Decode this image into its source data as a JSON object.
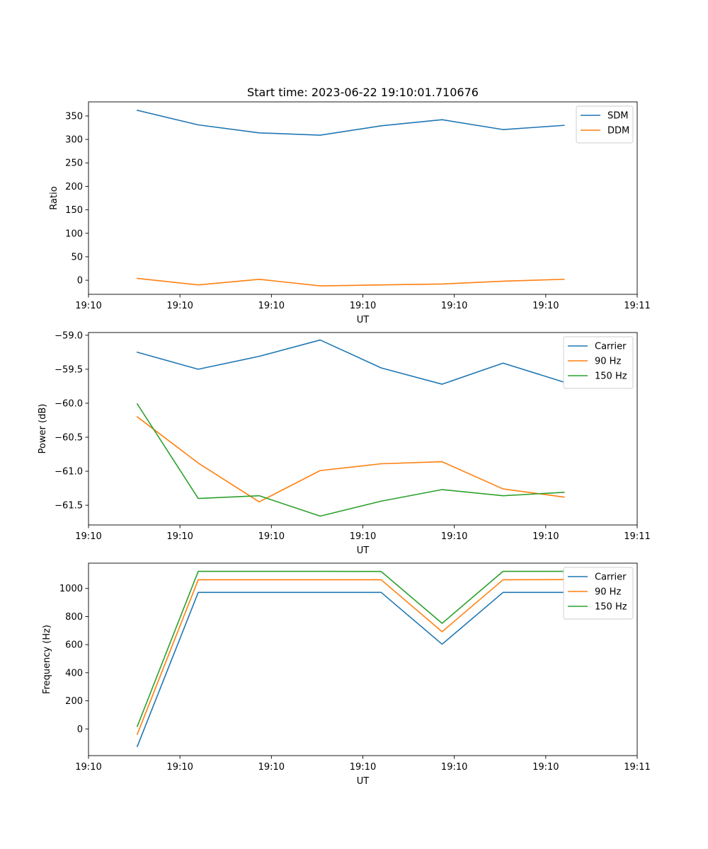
{
  "figure": {
    "title": "Start time: 2023-06-22 19:10:01.710676"
  },
  "colors": {
    "blue": "#1f77b4",
    "orange": "#ff7f0e",
    "green": "#2ca02c"
  },
  "chart_data": [
    {
      "type": "line",
      "title": "Start time: 2023-06-22 19:10:01.710676",
      "xlabel": "UT",
      "ylabel": "Ratio",
      "x": [
        1,
        2,
        3,
        4,
        5,
        6,
        7,
        8
      ],
      "xlim": [
        0.2,
        9.2
      ],
      "xticks": [
        0.2,
        1.7,
        3.2,
        4.7,
        6.2,
        7.7,
        9.2
      ],
      "xtick_labels": [
        "19:10",
        "19:10",
        "19:10",
        "19:10",
        "19:10",
        "19:10",
        "19:11"
      ],
      "ylim": [
        -30,
        380
      ],
      "yticks": [
        0,
        50,
        100,
        150,
        200,
        250,
        300,
        350
      ],
      "ytick_labels": [
        "0",
        "50",
        "100",
        "150",
        "200",
        "250",
        "300",
        "350"
      ],
      "legend_position": "top-right",
      "series": [
        {
          "name": "SDM",
          "color": "blue",
          "values": [
            362,
            331,
            314,
            309,
            329,
            342,
            321,
            330
          ]
        },
        {
          "name": "DDM",
          "color": "orange",
          "values": [
            4,
            -10,
            2,
            -12,
            -10,
            -8,
            -2,
            2
          ]
        }
      ]
    },
    {
      "type": "line",
      "xlabel": "UT",
      "ylabel": "Power (dB)",
      "x": [
        1,
        2,
        3,
        4,
        5,
        6,
        7,
        8
      ],
      "xlim": [
        0.2,
        9.2
      ],
      "xticks": [
        0.2,
        1.7,
        3.2,
        4.7,
        6.2,
        7.7,
        9.2
      ],
      "xtick_labels": [
        "19:10",
        "19:10",
        "19:10",
        "19:10",
        "19:10",
        "19:10",
        "19:11"
      ],
      "ylim": [
        -61.79,
        -58.96
      ],
      "yticks": [
        -59.0,
        -59.5,
        -60.0,
        -60.5,
        -61.0,
        -61.5
      ],
      "ytick_labels": [
        "−59.0",
        "−59.5",
        "−60.0",
        "−60.5",
        "−61.0",
        "−61.5"
      ],
      "legend_position": "top-right",
      "series": [
        {
          "name": "Carrier",
          "color": "blue",
          "values": [
            -59.25,
            -59.5,
            -59.31,
            -59.07,
            -59.48,
            -59.72,
            -59.41,
            -59.69
          ]
        },
        {
          "name": "90 Hz",
          "color": "orange",
          "values": [
            -60.2,
            -60.88,
            -61.45,
            -60.99,
            -60.89,
            -60.86,
            -61.26,
            -61.38
          ]
        },
        {
          "name": "150 Hz",
          "color": "green",
          "values": [
            -60.01,
            -61.4,
            -61.36,
            -61.66,
            -61.44,
            -61.27,
            -61.36,
            -61.31
          ]
        }
      ]
    },
    {
      "type": "line",
      "xlabel": "UT",
      "ylabel": "Frequency (Hz)",
      "x": [
        1,
        2,
        3,
        4,
        5,
        6,
        7,
        8
      ],
      "xlim": [
        0.2,
        9.2
      ],
      "xticks": [
        0.2,
        1.7,
        3.2,
        4.7,
        6.2,
        7.7,
        9.2
      ],
      "xtick_labels": [
        "19:10",
        "19:10",
        "19:10",
        "19:10",
        "19:10",
        "19:10",
        "19:11"
      ],
      "ylim": [
        -190,
        1180
      ],
      "yticks": [
        0,
        200,
        400,
        600,
        800,
        1000
      ],
      "ytick_labels": [
        "0",
        "200",
        "400",
        "600",
        "800",
        "1000"
      ],
      "legend_position": "top-right",
      "series": [
        {
          "name": "Carrier",
          "color": "blue",
          "values": [
            -125,
            972,
            972,
            972,
            972,
            603,
            972,
            972
          ]
        },
        {
          "name": "90 Hz",
          "color": "orange",
          "values": [
            -38,
            1062,
            1062,
            1062,
            1062,
            692,
            1062,
            1063
          ]
        },
        {
          "name": "150 Hz",
          "color": "green",
          "values": [
            18,
            1122,
            1122,
            1122,
            1121,
            752,
            1122,
            1122
          ]
        }
      ]
    }
  ]
}
